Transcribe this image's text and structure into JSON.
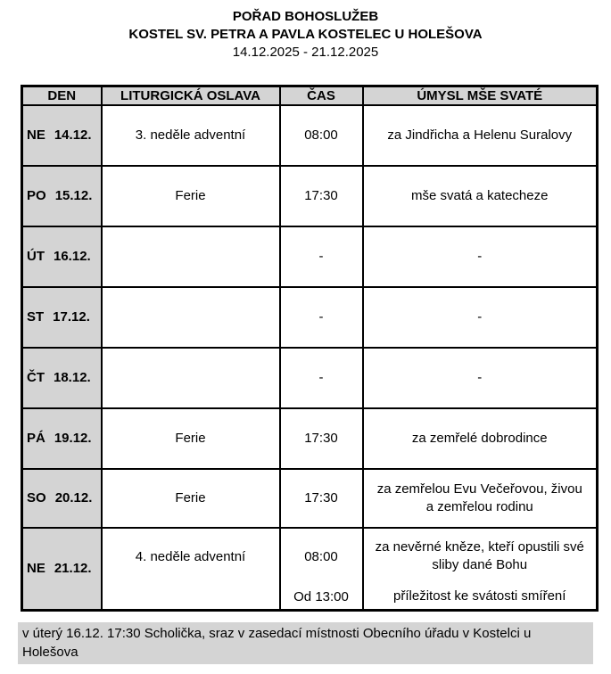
{
  "page": {
    "title": "POŘAD BOHOSLUŽEB",
    "subtitle": "KOSTEL SV. PETRA A PAVLA KOSTELEC U HOLEŠOVA",
    "date_range": "14.12.2025 - 21.12.2025"
  },
  "table": {
    "columns": {
      "day": "DEN",
      "celebration": "LITURGICKÁ OSLAVA",
      "time": "ČAS",
      "intention": "ÚMYSL MŠE SVATÉ"
    },
    "rows": [
      {
        "day": "NE",
        "date": "14.12.",
        "celebration": "3. neděle adventní",
        "time": "08:00",
        "intention": "za Jindřicha a Helenu Suralovy"
      },
      {
        "day": "PO",
        "date": "15.12.",
        "celebration": "Ferie",
        "time": "17:30",
        "intention": "mše svatá a katecheze"
      },
      {
        "day": "ÚT",
        "date": "16.12.",
        "celebration": "",
        "time": "-",
        "intention": "-"
      },
      {
        "day": "ST",
        "date": "17.12.",
        "celebration": "",
        "time": "-",
        "intention": "-"
      },
      {
        "day": "ČT",
        "date": "18.12.",
        "celebration": "",
        "time": "-",
        "intention": "-"
      },
      {
        "day": "PÁ",
        "date": "19.12.",
        "celebration": "Ferie",
        "time": "17:30",
        "intention": "za zemřelé dobrodince"
      },
      {
        "day": "SO",
        "date": "20.12.",
        "celebration": "Ferie",
        "time": "17:30",
        "intention": "za zemřelou Evu Večeřovou, živou\na zemřelou rodinu"
      },
      {
        "day": "NE",
        "date": "21.12.",
        "celebration": "4. neděle adventní",
        "entries": [
          {
            "time": "08:00",
            "intention": "za nevěrné kněze, kteří opustili své\nsliby dané Bohu"
          },
          {
            "time": "Od 13:00",
            "intention": "příležitost ke svátosti smíření"
          }
        ]
      }
    ]
  },
  "footer": {
    "note": "v úterý 16.12. 17:30 Scholička, sraz v zasedací místnosti Obecního úřadu v Kostelci u Holešova"
  },
  "colors": {
    "cell_shade": "#d4d4d4",
    "border": "#000000",
    "text": "#000000",
    "background": "#ffffff"
  }
}
